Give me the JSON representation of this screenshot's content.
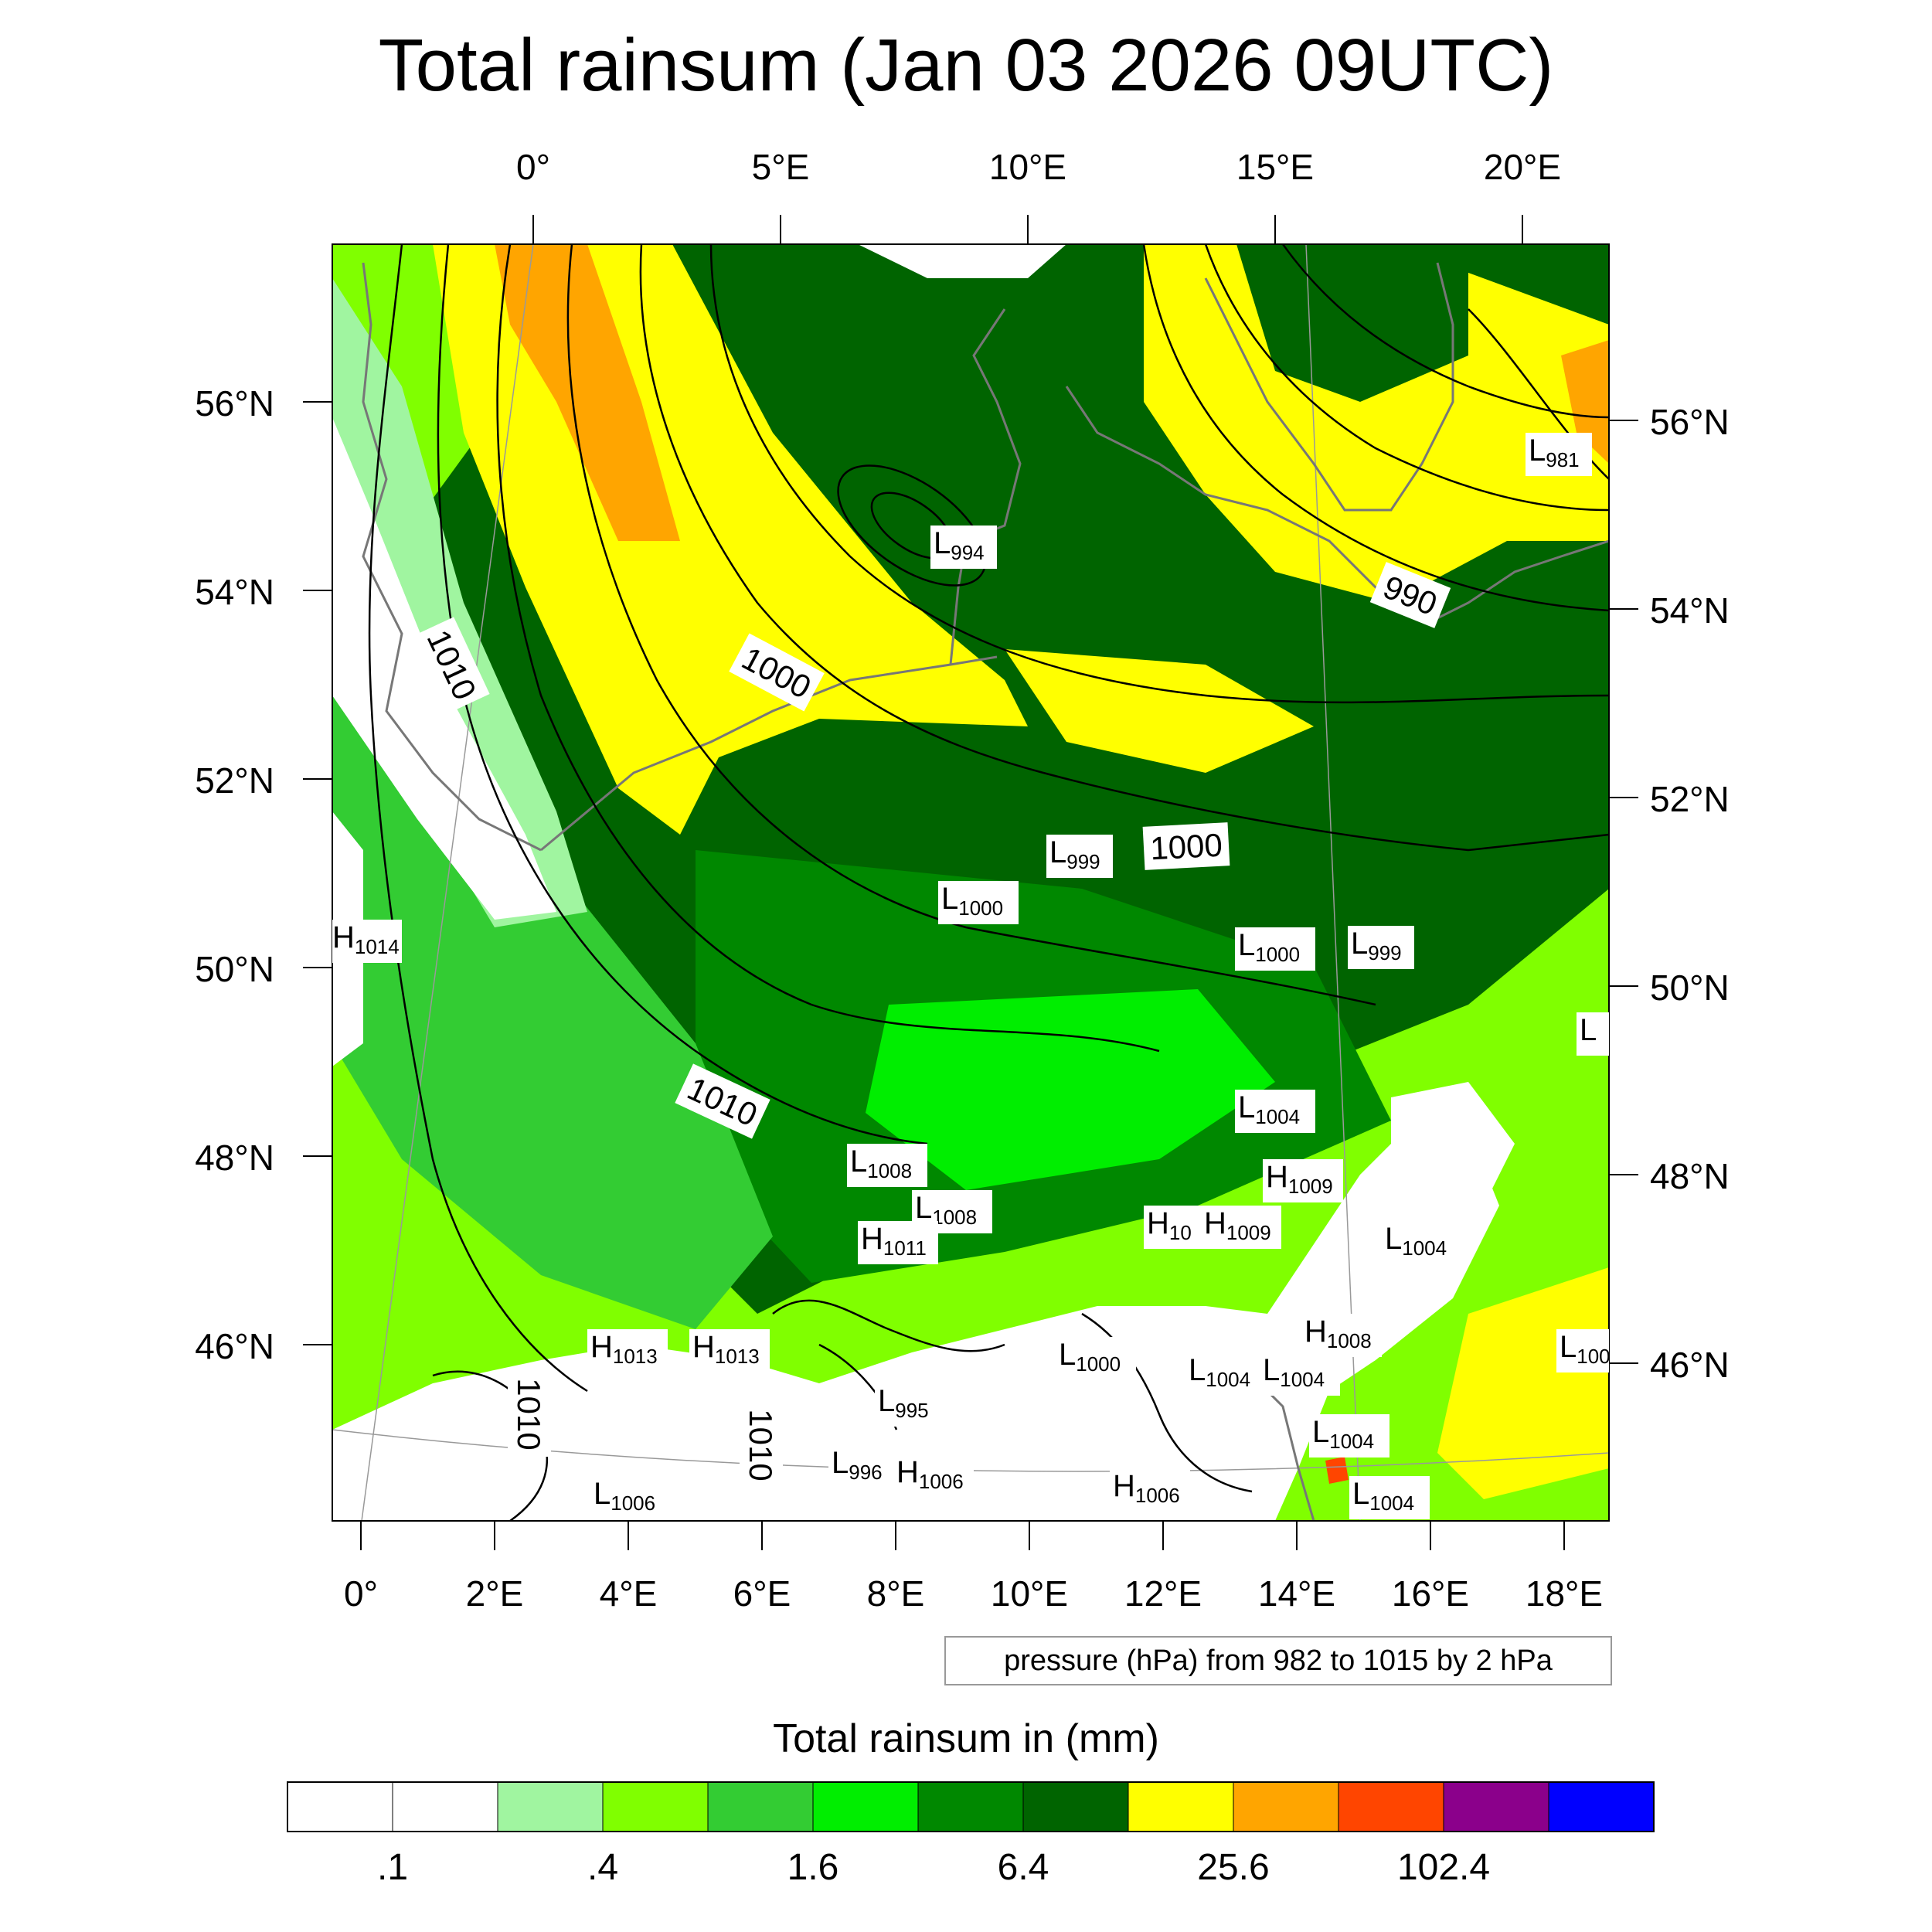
{
  "title": "Total rainsum (Jan 03 2026 09UTC)",
  "map": {
    "top_lon_labels": [
      "0°",
      "5°E",
      "10°E",
      "15°E",
      "20°E"
    ],
    "bottom_lon_labels": [
      "0°",
      "2°E",
      "4°E",
      "6°E",
      "8°E",
      "10°E",
      "12°E",
      "14°E",
      "16°E",
      "18°E"
    ],
    "left_lat_labels": [
      "56°N",
      "54°N",
      "52°N",
      "50°N",
      "48°N",
      "46°N"
    ],
    "right_lat_labels": [
      "56°N",
      "54°N",
      "52°N",
      "50°N",
      "48°N",
      "46°N"
    ],
    "isobar_labels": [
      "1010",
      "1000",
      "990",
      "1000",
      "1010",
      "1010",
      "1010"
    ],
    "pressure_centers": [
      {
        "type": "L",
        "value": "981"
      },
      {
        "type": "L",
        "value": "994"
      },
      {
        "type": "L",
        "value": "999"
      },
      {
        "type": "L",
        "value": "1000"
      },
      {
        "type": "L",
        "value": "1000"
      },
      {
        "type": "L",
        "value": "999"
      },
      {
        "type": "H",
        "value": "1014"
      },
      {
        "type": "L",
        "value": "1004"
      },
      {
        "type": "L",
        "value": "1008"
      },
      {
        "type": "L",
        "value": "1008"
      },
      {
        "type": "H",
        "value": "1011"
      },
      {
        "type": "H",
        "value": "1009"
      },
      {
        "type": "H",
        "value": "10"
      },
      {
        "type": "H",
        "value": "1009"
      },
      {
        "type": "L",
        "value": "1004"
      },
      {
        "type": "H",
        "value": "1013"
      },
      {
        "type": "H",
        "value": "1013"
      },
      {
        "type": "L",
        "value": "1000"
      },
      {
        "type": "L",
        "value": "995"
      },
      {
        "type": "L",
        "value": "1004"
      },
      {
        "type": "L",
        "value": "1004"
      },
      {
        "type": "H",
        "value": "1008"
      },
      {
        "type": "L",
        "value": "996"
      },
      {
        "type": "H",
        "value": "1006"
      },
      {
        "type": "L",
        "value": "1006"
      },
      {
        "type": "H",
        "value": "1006"
      },
      {
        "type": "L",
        "value": "1004"
      },
      {
        "type": "L",
        "value": "1004"
      },
      {
        "type": "L",
        "value": "100"
      },
      {
        "type": "L",
        "value": ""
      }
    ]
  },
  "contour_info": "pressure (hPa) from 982 to 1015 by 2 hPa",
  "colorbar": {
    "title": "Total rainsum in (mm)",
    "colors": [
      "#ffffff",
      "#ffffff",
      "#a0f5a0",
      "#80ff00",
      "#33cc33",
      "#00ee00",
      "#008800",
      "#006400",
      "#ffff00",
      "#ffa500",
      "#ff4500",
      "#8b008b",
      "#0000ff"
    ],
    "labels": [
      ".1",
      ".4",
      "1.6",
      "6.4",
      "25.6",
      "102.4"
    ]
  }
}
